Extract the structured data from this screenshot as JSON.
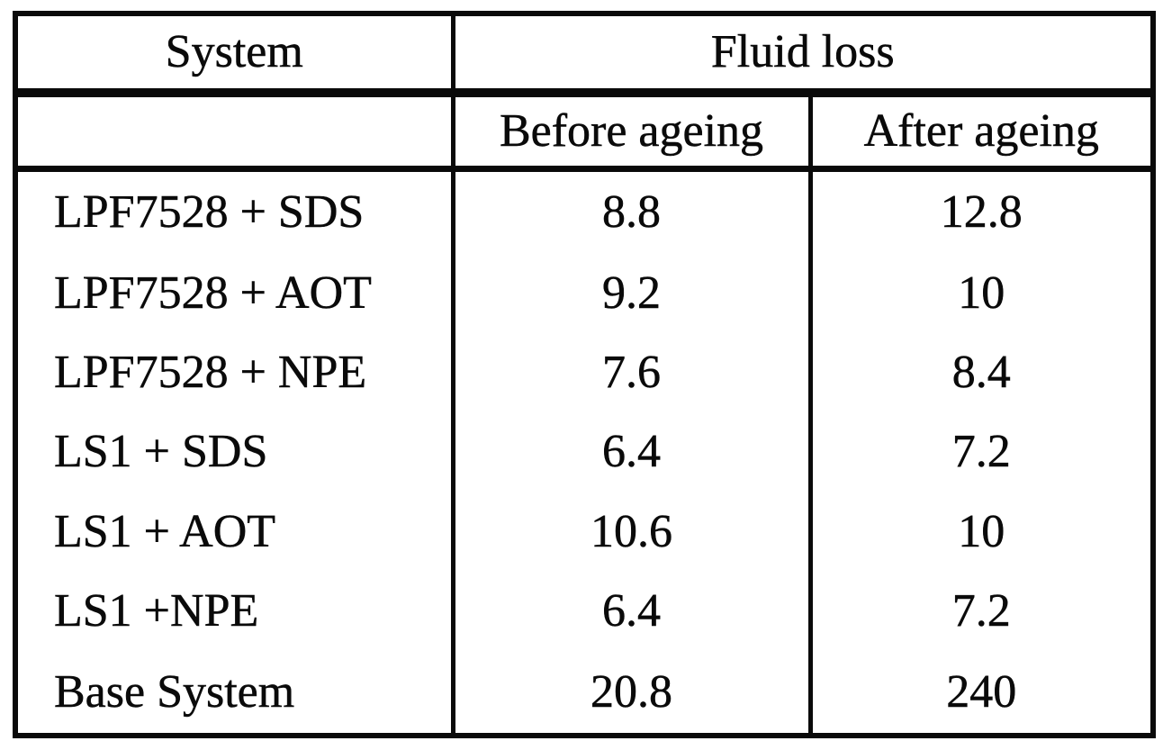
{
  "colors": {
    "ink": "#0a0a0a",
    "paper": "#ffffff"
  },
  "table": {
    "header": {
      "system": "System",
      "fluid_loss": "Fluid loss",
      "before_ageing": "Before ageing",
      "after_ageing": "After ageing"
    },
    "rows": [
      {
        "system": "LPF7528 + SDS",
        "before": "8.8",
        "after": "12.8"
      },
      {
        "system": "LPF7528 + AOT",
        "before": "9.2",
        "after": "10"
      },
      {
        "system": "LPF7528 + NPE",
        "before": "7.6",
        "after": "8.4"
      },
      {
        "system": "LS1 + SDS",
        "before": "6.4",
        "after": "7.2"
      },
      {
        "system": "LS1 + AOT",
        "before": "10.6",
        "after": "10"
      },
      {
        "system": "LS1 +NPE",
        "before": "6.4",
        "after": "7.2"
      },
      {
        "system": "Base System",
        "before": "20.8",
        "after": "240"
      }
    ]
  }
}
